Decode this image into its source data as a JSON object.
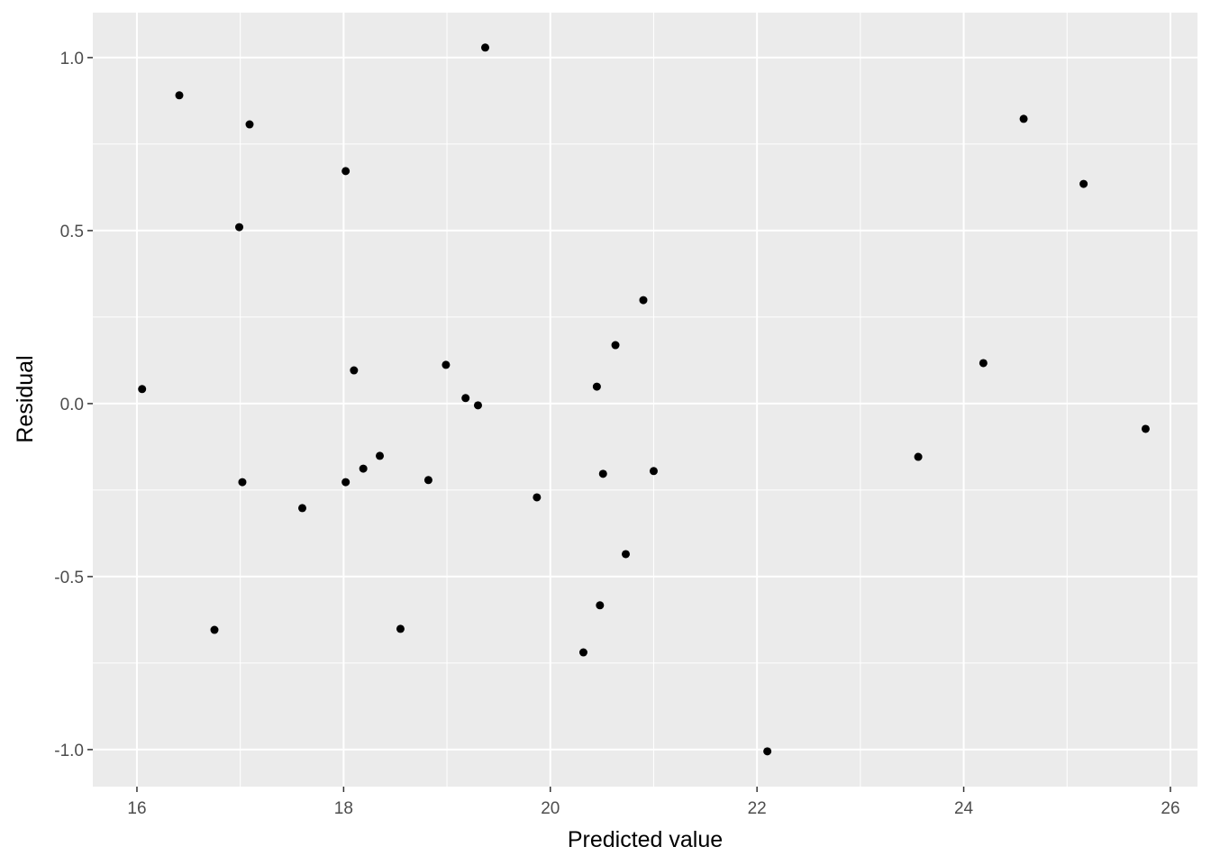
{
  "chart_data": {
    "type": "scatter",
    "x_label": "Predicted value",
    "y_label": "Residual",
    "series": [
      {
        "color": "#000000",
        "x": [
          16.05,
          16.41,
          16.75,
          16.99,
          17.02,
          17.09,
          17.6,
          18.02,
          18.02,
          18.1,
          18.19,
          18.35,
          18.55,
          18.82,
          18.99,
          19.18,
          19.3,
          19.37,
          19.87,
          20.32,
          20.45,
          20.48,
          20.51,
          20.63,
          20.73,
          20.9,
          21.0,
          22.1,
          23.56,
          24.19,
          24.58,
          25.16,
          25.76
        ],
        "values": [
          0.042,
          0.891,
          -0.654,
          0.51,
          -0.227,
          0.807,
          -0.302,
          0.672,
          -0.227,
          0.096,
          -0.188,
          -0.151,
          -0.651,
          -0.221,
          0.112,
          0.016,
          -0.005,
          1.029,
          -0.271,
          -0.719,
          0.049,
          -0.583,
          -0.203,
          0.169,
          -0.435,
          0.299,
          -0.195,
          -1.005,
          -0.154,
          0.117,
          0.823,
          0.635,
          -0.073
        ]
      }
    ],
    "xlim": [
      15.573,
      26.262
    ],
    "ylim": [
      -1.107,
      1.13
    ],
    "xticks": [
      16,
      18,
      20,
      22,
      24,
      26
    ],
    "x_minor_ticks": [
      17,
      19,
      21,
      23,
      25
    ],
    "yticks": [
      {
        "value": -1,
        "label": "-1.0"
      },
      {
        "value": -0.5,
        "label": "-0.5"
      },
      {
        "value": 0,
        "label": "0.0"
      },
      {
        "value": 0.5,
        "label": "0.5"
      },
      {
        "value": 1,
        "label": "1.0"
      }
    ],
    "y_minor_ticks": [
      -0.75,
      -0.25,
      0.25,
      0.75
    ],
    "grid": true
  }
}
